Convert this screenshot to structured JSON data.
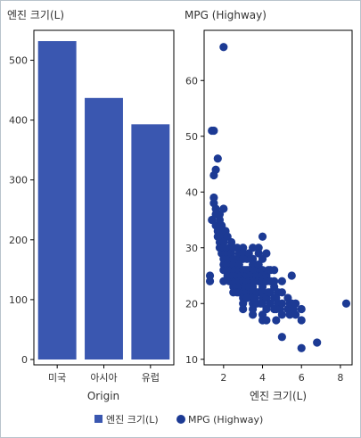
{
  "chart_data": [
    {
      "type": "bar",
      "title": "엔진 크기(L)",
      "xlabel": "Origin",
      "ylabel": "",
      "categories": [
        "미국",
        "아시아",
        "유럽"
      ],
      "values": [
        532,
        437,
        393
      ],
      "ylim": [
        0,
        550
      ],
      "yticks": [
        0,
        100,
        200,
        300,
        400,
        500
      ],
      "grid": false,
      "color": "#3a57b0"
    },
    {
      "type": "scatter",
      "title": "MPG (Highway)",
      "xlabel": "엔진 크기(L)",
      "ylabel": "",
      "xlim": [
        1.0,
        8.6
      ],
      "ylim": [
        9,
        69
      ],
      "xticks": [
        2,
        4,
        6,
        8
      ],
      "yticks": [
        10,
        20,
        30,
        40,
        50,
        60
      ],
      "grid": false,
      "color": "#1c3a94",
      "points": [
        [
          1.3,
          24
        ],
        [
          1.3,
          25
        ],
        [
          1.4,
          51
        ],
        [
          1.5,
          51
        ],
        [
          1.5,
          43
        ],
        [
          1.6,
          44
        ],
        [
          1.7,
          46
        ],
        [
          1.4,
          35
        ],
        [
          1.5,
          39
        ],
        [
          1.5,
          38
        ],
        [
          1.6,
          37
        ],
        [
          1.6,
          36
        ],
        [
          1.6,
          34
        ],
        [
          1.7,
          33
        ],
        [
          1.7,
          32
        ],
        [
          1.8,
          36
        ],
        [
          1.8,
          35
        ],
        [
          1.8,
          33
        ],
        [
          1.8,
          31
        ],
        [
          1.8,
          30
        ],
        [
          1.9,
          34
        ],
        [
          1.9,
          32
        ],
        [
          1.9,
          30
        ],
        [
          1.9,
          29
        ],
        [
          2.0,
          66
        ],
        [
          2.0,
          37
        ],
        [
          2.0,
          33
        ],
        [
          2.0,
          31
        ],
        [
          2.0,
          30
        ],
        [
          2.0,
          28
        ],
        [
          2.0,
          27
        ],
        [
          2.0,
          26
        ],
        [
          2.0,
          24
        ],
        [
          2.1,
          33
        ],
        [
          2.1,
          29
        ],
        [
          2.1,
          26
        ],
        [
          2.2,
          32
        ],
        [
          2.2,
          29
        ],
        [
          2.2,
          27
        ],
        [
          2.2,
          25
        ],
        [
          2.3,
          30
        ],
        [
          2.3,
          28
        ],
        [
          2.3,
          26
        ],
        [
          2.3,
          24
        ],
        [
          2.4,
          31
        ],
        [
          2.4,
          29
        ],
        [
          2.4,
          27
        ],
        [
          2.4,
          26
        ],
        [
          2.4,
          24
        ],
        [
          2.5,
          30
        ],
        [
          2.5,
          28
        ],
        [
          2.5,
          27
        ],
        [
          2.5,
          25
        ],
        [
          2.5,
          23
        ],
        [
          2.5,
          22
        ],
        [
          2.6,
          26
        ],
        [
          2.6,
          24
        ],
        [
          2.7,
          30
        ],
        [
          2.7,
          28
        ],
        [
          2.7,
          26
        ],
        [
          2.7,
          25
        ],
        [
          2.7,
          23
        ],
        [
          2.7,
          22
        ],
        [
          2.8,
          29
        ],
        [
          2.8,
          27
        ],
        [
          2.8,
          26
        ],
        [
          2.8,
          24
        ],
        [
          2.8,
          22
        ],
        [
          2.9,
          25
        ],
        [
          3.0,
          30
        ],
        [
          3.0,
          29
        ],
        [
          3.0,
          28
        ],
        [
          3.0,
          26
        ],
        [
          3.0,
          25
        ],
        [
          3.0,
          24
        ],
        [
          3.0,
          23
        ],
        [
          3.0,
          22
        ],
        [
          3.0,
          21
        ],
        [
          3.0,
          20
        ],
        [
          3.0,
          19
        ],
        [
          3.1,
          26
        ],
        [
          3.1,
          25
        ],
        [
          3.1,
          23
        ],
        [
          3.2,
          28
        ],
        [
          3.2,
          26
        ],
        [
          3.2,
          25
        ],
        [
          3.2,
          24
        ],
        [
          3.2,
          22
        ],
        [
          3.2,
          21
        ],
        [
          3.3,
          29
        ],
        [
          3.3,
          26
        ],
        [
          3.3,
          24
        ],
        [
          3.3,
          23
        ],
        [
          3.4,
          28
        ],
        [
          3.4,
          25
        ],
        [
          3.5,
          30
        ],
        [
          3.5,
          28
        ],
        [
          3.5,
          27
        ],
        [
          3.5,
          26
        ],
        [
          3.5,
          25
        ],
        [
          3.5,
          24
        ],
        [
          3.5,
          23
        ],
        [
          3.5,
          22
        ],
        [
          3.5,
          21
        ],
        [
          3.5,
          20
        ],
        [
          3.5,
          19
        ],
        [
          3.5,
          18
        ],
        [
          3.6,
          27
        ],
        [
          3.6,
          26
        ],
        [
          3.6,
          24
        ],
        [
          3.6,
          21
        ],
        [
          3.7,
          25
        ],
        [
          3.7,
          22
        ],
        [
          3.7,
          20
        ],
        [
          3.8,
          30
        ],
        [
          3.8,
          29
        ],
        [
          3.8,
          27
        ],
        [
          3.8,
          25
        ],
        [
          3.8,
          24
        ],
        [
          3.8,
          22
        ],
        [
          3.9,
          26
        ],
        [
          3.9,
          20
        ],
        [
          4.0,
          32
        ],
        [
          4.0,
          28
        ],
        [
          4.0,
          26
        ],
        [
          4.0,
          25
        ],
        [
          4.0,
          24
        ],
        [
          4.0,
          23
        ],
        [
          4.0,
          22
        ],
        [
          4.0,
          21
        ],
        [
          4.0,
          20
        ],
        [
          4.0,
          18
        ],
        [
          4.0,
          17
        ],
        [
          4.2,
          29
        ],
        [
          4.2,
          25
        ],
        [
          4.2,
          24
        ],
        [
          4.2,
          21
        ],
        [
          4.2,
          19
        ],
        [
          4.2,
          17
        ],
        [
          4.3,
          26
        ],
        [
          4.3,
          22
        ],
        [
          4.4,
          26
        ],
        [
          4.4,
          24
        ],
        [
          4.4,
          22
        ],
        [
          4.4,
          20
        ],
        [
          4.6,
          26
        ],
        [
          4.6,
          24
        ],
        [
          4.6,
          23
        ],
        [
          4.6,
          21
        ],
        [
          4.6,
          19
        ],
        [
          4.7,
          21
        ],
        [
          4.7,
          19
        ],
        [
          4.7,
          17
        ],
        [
          4.8,
          22
        ],
        [
          4.8,
          20
        ],
        [
          4.9,
          19
        ],
        [
          5.0,
          24
        ],
        [
          5.0,
          22
        ],
        [
          5.0,
          20
        ],
        [
          5.0,
          18
        ],
        [
          5.0,
          14
        ],
        [
          5.3,
          21
        ],
        [
          5.3,
          19
        ],
        [
          5.4,
          20
        ],
        [
          5.4,
          18
        ],
        [
          5.5,
          25
        ],
        [
          5.5,
          20
        ],
        [
          5.6,
          19
        ],
        [
          5.7,
          20
        ],
        [
          5.7,
          18
        ],
        [
          6.0,
          19
        ],
        [
          6.0,
          17
        ],
        [
          6.0,
          12
        ],
        [
          6.8,
          13
        ],
        [
          8.3,
          20
        ]
      ]
    }
  ],
  "legend": [
    {
      "label": "엔진 크기(L)",
      "marker": "square",
      "color": "#3a57b0"
    },
    {
      "label": "MPG (Highway)",
      "marker": "circle",
      "color": "#1c3a94"
    }
  ]
}
